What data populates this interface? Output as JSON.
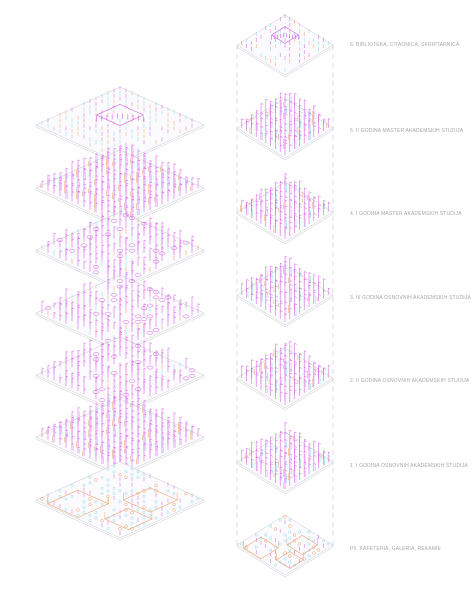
{
  "floor_labels": [
    "6. BIBLIOTEKA, CITAONICA, SKRIPTARNICA",
    "5. II GODINA MASTER AKADEMSKIH STUDIJA",
    "4. I GODINA MASTER AKADEMSKIH STUDIJA",
    "3. III GODINA OSNOVNIH AKADEMSKIH STUDIJA",
    "2. II GODINA OSNOVNIH AKADEMSKIH STUDIJA",
    "1. I GODINA OSNOVNIH AKADEMSKIH STUDIJA",
    "P0. KAFETERIA, GALERIA, REKAMIE"
  ],
  "colors": {
    "magenta": "#d65ee6",
    "cyan": "#7fd4ec",
    "orange": "#f0a070",
    "slab": "#c9c9d2",
    "dash": "#c6c6cc",
    "label": "#a7a7ae"
  }
}
